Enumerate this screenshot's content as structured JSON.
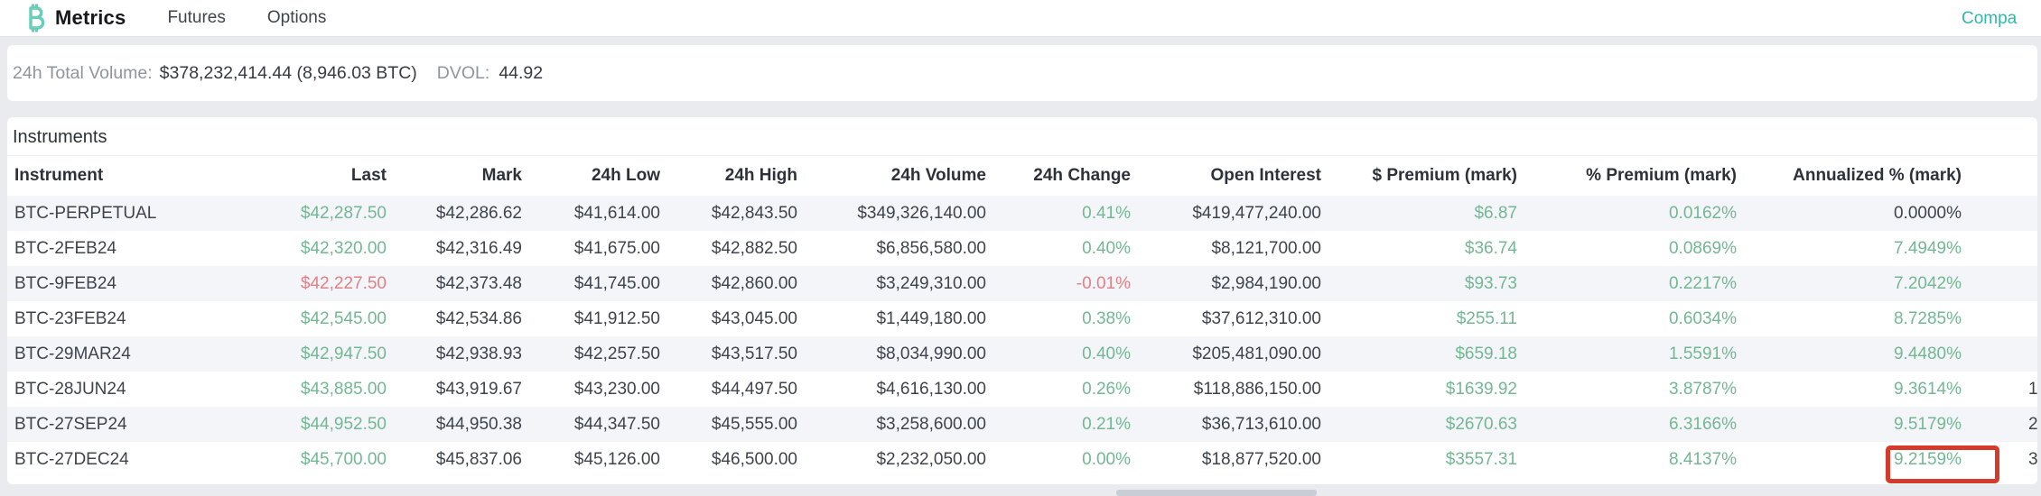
{
  "nav": {
    "brand": "Metrics",
    "items": [
      {
        "label": "Futures"
      },
      {
        "label": "Options"
      }
    ],
    "compare_link": "Compa"
  },
  "stats": {
    "volume_label": "24h Total Volume:",
    "volume_value": "$378,232,414.44 (8,946.03 BTC)",
    "dvol_label": "DVOL:",
    "dvol_value": "44.92"
  },
  "section": {
    "title": "Instruments"
  },
  "table": {
    "columns": [
      "Instrument",
      "Last",
      "Mark",
      "24h Low",
      "24h High",
      "24h Volume",
      "24h Change",
      "Open Interest",
      "$ Premium (mark)",
      "% Premium (mark)",
      "Annualized % (mark)",
      ""
    ],
    "rows": [
      {
        "instrument": "BTC-PERPETUAL",
        "last": "$42,287.50",
        "last_dir": "g",
        "mark": "$42,286.62",
        "low": "$41,614.00",
        "high": "$42,843.50",
        "volume": "$349,326,140.00",
        "change": "0.41%",
        "change_dir": "g",
        "open_interest": "$419,477,240.00",
        "usd_premium": "$6.87",
        "pct_premium": "0.0162%",
        "annualized": "0.0000%",
        "annualized_dir": "d",
        "frag": ""
      },
      {
        "instrument": "BTC-2FEB24",
        "last": "$42,320.00",
        "last_dir": "g",
        "mark": "$42,316.49",
        "low": "$41,675.00",
        "high": "$42,882.50",
        "volume": "$6,856,580.00",
        "change": "0.40%",
        "change_dir": "g",
        "open_interest": "$8,121,700.00",
        "usd_premium": "$36.74",
        "pct_premium": "0.0869%",
        "annualized": "7.4949%",
        "annualized_dir": "g",
        "frag": ""
      },
      {
        "instrument": "BTC-9FEB24",
        "last": "$42,227.50",
        "last_dir": "r",
        "mark": "$42,373.48",
        "low": "$41,745.00",
        "high": "$42,860.00",
        "volume": "$3,249,310.00",
        "change": "-0.01%",
        "change_dir": "r",
        "open_interest": "$2,984,190.00",
        "usd_premium": "$93.73",
        "pct_premium": "0.2217%",
        "annualized": "7.2042%",
        "annualized_dir": "g",
        "frag": ""
      },
      {
        "instrument": "BTC-23FEB24",
        "last": "$42,545.00",
        "last_dir": "g",
        "mark": "$42,534.86",
        "low": "$41,912.50",
        "high": "$43,045.00",
        "volume": "$1,449,180.00",
        "change": "0.38%",
        "change_dir": "g",
        "open_interest": "$37,612,310.00",
        "usd_premium": "$255.11",
        "pct_premium": "0.6034%",
        "annualized": "8.7285%",
        "annualized_dir": "g",
        "frag": ""
      },
      {
        "instrument": "BTC-29MAR24",
        "last": "$42,947.50",
        "last_dir": "g",
        "mark": "$42,938.93",
        "low": "$42,257.50",
        "high": "$43,517.50",
        "volume": "$8,034,990.00",
        "change": "0.40%",
        "change_dir": "g",
        "open_interest": "$205,481,090.00",
        "usd_premium": "$659.18",
        "pct_premium": "1.5591%",
        "annualized": "9.4480%",
        "annualized_dir": "g",
        "frag": ""
      },
      {
        "instrument": "BTC-28JUN24",
        "last": "$43,885.00",
        "last_dir": "g",
        "mark": "$43,919.67",
        "low": "$43,230.00",
        "high": "$44,497.50",
        "volume": "$4,616,130.00",
        "change": "0.26%",
        "change_dir": "g",
        "open_interest": "$118,886,150.00",
        "usd_premium": "$1639.92",
        "pct_premium": "3.8787%",
        "annualized": "9.3614%",
        "annualized_dir": "g",
        "frag": "1"
      },
      {
        "instrument": "BTC-27SEP24",
        "last": "$44,952.50",
        "last_dir": "g",
        "mark": "$44,950.38",
        "low": "$44,347.50",
        "high": "$45,555.00",
        "volume": "$3,258,600.00",
        "change": "0.21%",
        "change_dir": "g",
        "open_interest": "$36,713,610.00",
        "usd_premium": "$2670.63",
        "pct_premium": "6.3166%",
        "annualized": "9.5179%",
        "annualized_dir": "g",
        "frag": "2"
      },
      {
        "instrument": "BTC-27DEC24",
        "last": "$45,700.00",
        "last_dir": "g",
        "mark": "$45,837.06",
        "low": "$45,126.00",
        "high": "$46,500.00",
        "volume": "$2,232,050.00",
        "change": "0.00%",
        "change_dir": "g",
        "open_interest": "$18,877,520.00",
        "usd_premium": "$3557.31",
        "pct_premium": "8.4137%",
        "annualized": "9.2159%",
        "annualized_dir": "g",
        "frag": "3"
      }
    ]
  },
  "annotation": {
    "target_value": "9.2159%",
    "color": "#d53b2c"
  },
  "colors": {
    "positive": "#74b794",
    "negative": "#df8186",
    "accent_teal": "#35b7aa",
    "logo_mint": "#68cdb9",
    "page_bg": "#e9ebee",
    "stripe": "#f3f5f9"
  }
}
